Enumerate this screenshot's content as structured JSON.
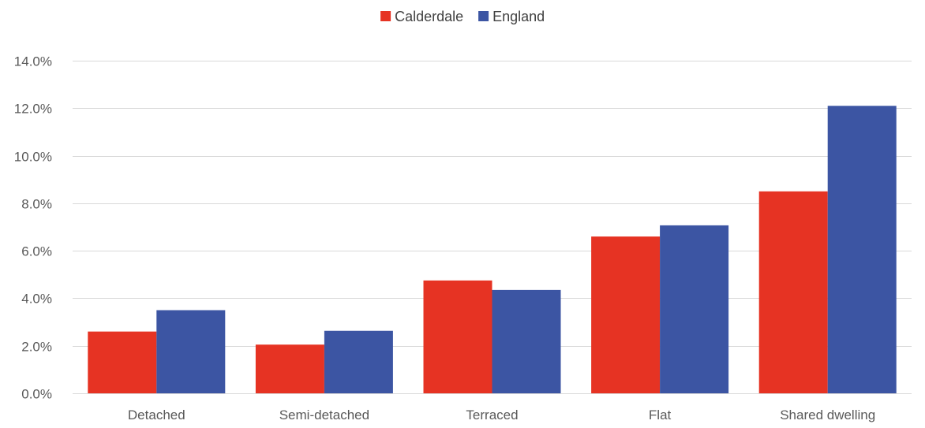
{
  "chart_data": {
    "type": "bar",
    "title": "",
    "xlabel": "",
    "ylabel": "",
    "categories": [
      "Detached",
      "Semi-detached",
      "Terraced",
      "Flat",
      "Shared dwelling"
    ],
    "series": [
      {
        "name": "Calderdale",
        "color": "#e63323",
        "values": [
          0.026,
          0.0205,
          0.0475,
          0.066,
          0.085
        ]
      },
      {
        "name": "England",
        "color": "#3c55a3",
        "values": [
          0.035,
          0.0263,
          0.0435,
          0.0707,
          0.121
        ]
      }
    ],
    "ylim": [
      0,
      0.14
    ],
    "yticks": [
      0,
      0.02,
      0.04,
      0.06,
      0.08,
      0.1,
      0.12,
      0.14
    ],
    "ytick_labels": [
      "0.0%",
      "2.0%",
      "4.0%",
      "6.0%",
      "8.0%",
      "10.0%",
      "12.0%",
      "14.0%"
    ],
    "legend_position": "top-center",
    "grid": true,
    "gridline_color": "#d9d9d9"
  }
}
